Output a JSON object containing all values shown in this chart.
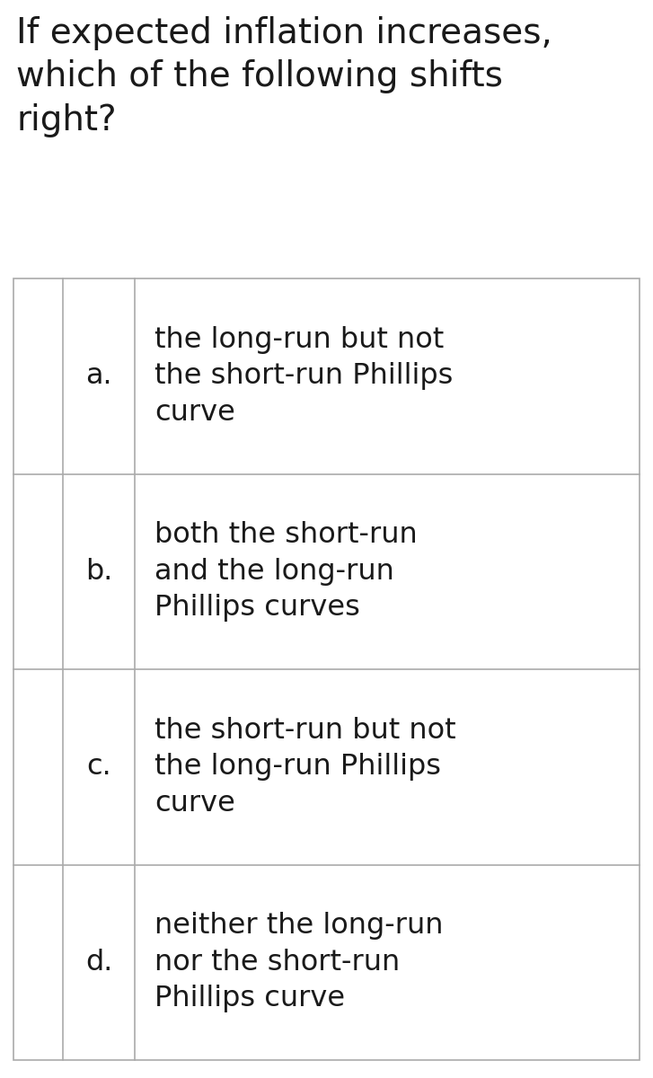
{
  "title": "If expected inflation increases,\nwhich of the following shifts\nright?",
  "title_fontsize": 28,
  "title_color": "#1a1a1a",
  "background_color": "#ffffff",
  "table_line_color": "#aaaaaa",
  "options": [
    {
      "label": "a.",
      "text": "the long-run but not\nthe short-run Phillips\ncurve"
    },
    {
      "label": "b.",
      "text": "both the short-run\nand the long-run\nPhillips curves"
    },
    {
      "label": "c.",
      "text": "the short-run but not\nthe long-run Phillips\ncurve"
    },
    {
      "label": "d.",
      "text": "neither the long-run\nnor the short-run\nPhillips curve"
    }
  ],
  "option_fontsize": 23,
  "label_fontsize": 23,
  "text_color": "#1a1a1a",
  "fig_width": 7.27,
  "fig_height": 12.0,
  "dpi": 100
}
